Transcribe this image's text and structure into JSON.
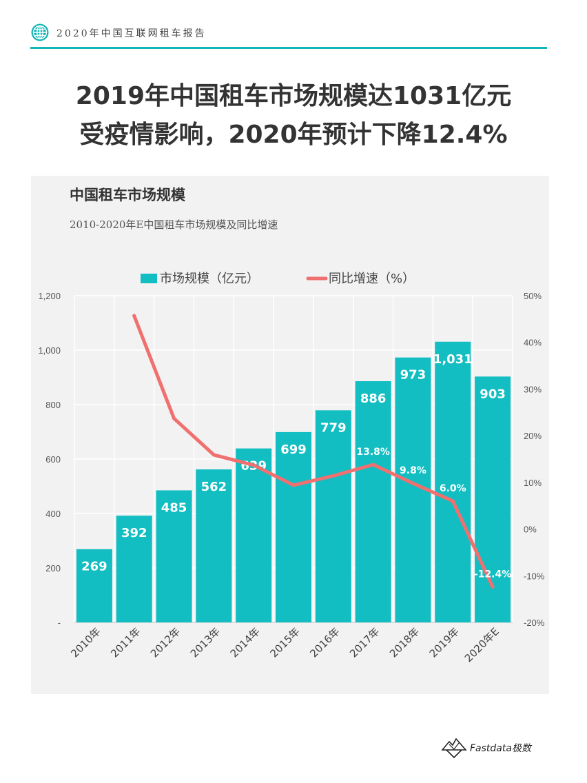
{
  "header": {
    "report_title": "2020年中国互联网租车报告"
  },
  "headline": {
    "line1": "2019年中国租车市场规模达1031亿元",
    "line2": "受疫情影响，2020年预计下降12.4%"
  },
  "chart_data": {
    "type": "bar",
    "title": "中国租车市场规模",
    "subtitle": "2010-2020年E中国租车市场规模及同比增速",
    "categories": [
      "2010年",
      "2011年",
      "2012年",
      "2013年",
      "2014年",
      "2015年",
      "2016年",
      "2017年",
      "2018年",
      "2019年",
      "2020年E"
    ],
    "series": [
      {
        "name": "市场规模（亿元）",
        "type": "bar",
        "axis": "left",
        "color": "#12bec2",
        "values": [
          269,
          392,
          485,
          562,
          639,
          699,
          779,
          886,
          973,
          1031,
          903
        ],
        "labels": [
          "269",
          "392",
          "485",
          "562",
          "639",
          "699",
          "779",
          "886",
          "973",
          "1,031",
          "903"
        ]
      },
      {
        "name": "同比增速（%）",
        "type": "line",
        "axis": "right",
        "color": "#f07070",
        "values": [
          null,
          45.7,
          23.7,
          15.9,
          13.7,
          9.4,
          11.4,
          13.8,
          9.8,
          6.0,
          -12.4
        ],
        "labels": [
          "",
          "",
          "",
          "",
          "",
          "",
          "",
          "13.8%",
          "9.8%",
          "6.0%",
          "-12.4%"
        ]
      }
    ],
    "y_left": {
      "ylim": [
        0,
        1200
      ],
      "ticks": [
        "-",
        "200",
        "400",
        "600",
        "800",
        "1,000",
        "1,200"
      ]
    },
    "y_right": {
      "ylim": [
        -20,
        50
      ],
      "ticks": [
        "-20%",
        "-10%",
        "0%",
        "10%",
        "20%",
        "30%",
        "40%",
        "50%"
      ]
    },
    "grid": true,
    "legend_position": "top"
  },
  "logo": {
    "text": "Fastdata极数"
  },
  "colors": {
    "accent": "#14b5b5",
    "bar": "#12bec2",
    "line": "#f07070",
    "panel_bg": "#f2f2f2"
  }
}
